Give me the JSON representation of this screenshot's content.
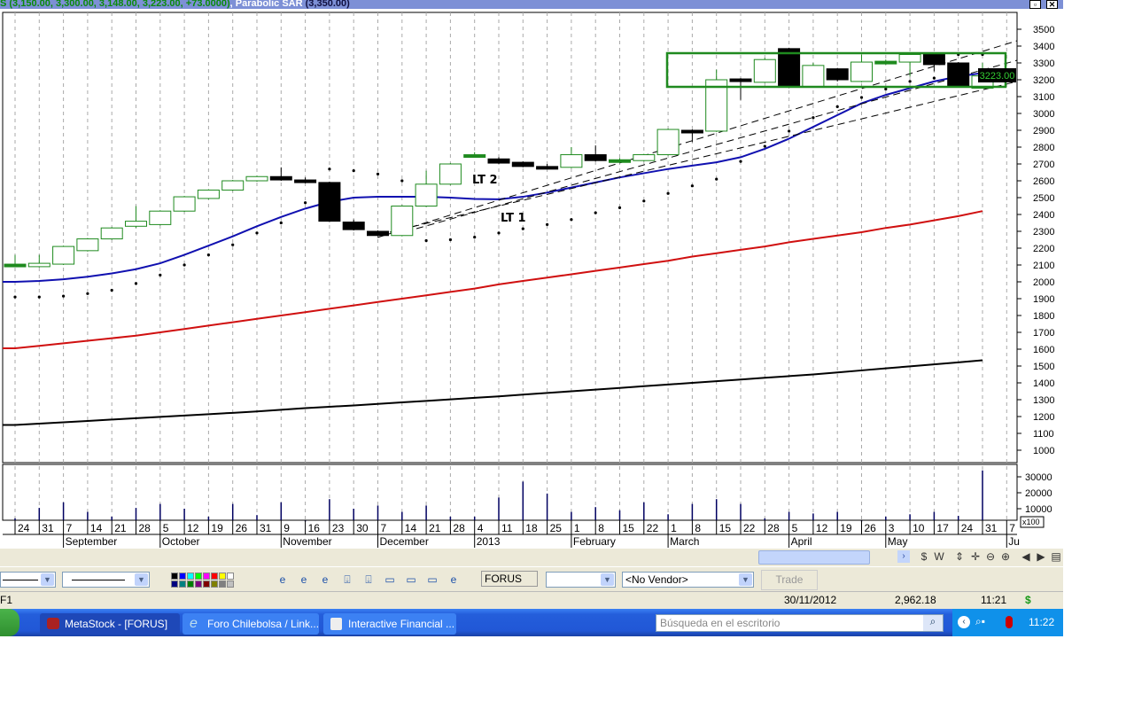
{
  "header": {
    "ohlc": "S (3,150.00, 3,300.00, 3,148.00, 3,223.00, +73.0000)",
    "sep": ", ",
    "indicator_name": "Parabolic SAR",
    "indicator_value": "(3,350.00)",
    "restore_label": "▫",
    "close_label": "✕"
  },
  "chart_data": {
    "type": "candlestick",
    "symbol": "FORUS",
    "y_range": [
      950,
      3600
    ],
    "y_ticks": [
      3500,
      3400,
      3300,
      3200,
      3100,
      3000,
      2900,
      2800,
      2700,
      2600,
      2500,
      2400,
      2300,
      2200,
      2100,
      2000,
      1900,
      1800,
      1700,
      1600,
      1500,
      1400,
      1300,
      1200,
      1100,
      1000
    ],
    "last_price_label": "3223.00",
    "x_days": [
      "24",
      "31",
      "7",
      "14",
      "21",
      "28",
      "5",
      "12",
      "19",
      "26",
      "31",
      "9",
      "16",
      "23",
      "30",
      "7",
      "14",
      "21",
      "28",
      "4",
      "11",
      "18",
      "25",
      "1",
      "8",
      "15",
      "22",
      "1",
      "8",
      "15",
      "22",
      "28",
      "5",
      "12",
      "19",
      "26",
      "3",
      "10",
      "17",
      "24",
      "31",
      "7"
    ],
    "x_months": [
      {
        "label": "September",
        "week": 2
      },
      {
        "label": "October",
        "week": 6
      },
      {
        "label": "November",
        "week": 11
      },
      {
        "label": "December",
        "week": 15
      },
      {
        "label": "2013",
        "week": 19
      },
      {
        "label": "February",
        "week": 23
      },
      {
        "label": "March",
        "week": 27
      },
      {
        "label": "April",
        "week": 32
      },
      {
        "label": "May",
        "week": 36
      },
      {
        "label": "Ju",
        "week": 41
      }
    ],
    "candles": [
      [
        2095,
        2160,
        2090,
        2105
      ],
      [
        2090,
        2160,
        2085,
        2110
      ],
      [
        2105,
        2215,
        2100,
        2210
      ],
      [
        2185,
        2260,
        2180,
        2255
      ],
      [
        2255,
        2325,
        2250,
        2320
      ],
      [
        2330,
        2450,
        2320,
        2360
      ],
      [
        2340,
        2425,
        2335,
        2420
      ],
      [
        2420,
        2510,
        2415,
        2505
      ],
      [
        2495,
        2550,
        2490,
        2545
      ],
      [
        2545,
        2605,
        2540,
        2600
      ],
      [
        2600,
        2630,
        2595,
        2625
      ],
      [
        2625,
        2680,
        2600,
        2605
      ],
      [
        2605,
        2620,
        2585,
        2590
      ],
      [
        2590,
        2595,
        2355,
        2360
      ],
      [
        2355,
        2370,
        2305,
        2310
      ],
      [
        2300,
        2305,
        2270,
        2275
      ],
      [
        2275,
        2455,
        2270,
        2450
      ],
      [
        2450,
        2660,
        2445,
        2580
      ],
      [
        2580,
        2705,
        2575,
        2700
      ],
      [
        2745,
        2770,
        2740,
        2755
      ],
      [
        2730,
        2740,
        2700,
        2705
      ],
      [
        2710,
        2715,
        2680,
        2685
      ],
      [
        2685,
        2700,
        2675,
        2680
      ],
      [
        2680,
        2800,
        2675,
        2755
      ],
      [
        2755,
        2810,
        2715,
        2720
      ],
      [
        2725,
        2735,
        2715,
        2725
      ],
      [
        2720,
        2760,
        2715,
        2755
      ],
      [
        2755,
        2910,
        2750,
        2905
      ],
      [
        2900,
        2905,
        2830,
        2885
      ],
      [
        2895,
        3260,
        2890,
        3200
      ],
      [
        3205,
        3210,
        3080,
        3190
      ],
      [
        3185,
        3330,
        3180,
        3320
      ],
      [
        3385,
        3390,
        3150,
        3165
      ],
      [
        3160,
        3300,
        3155,
        3285
      ],
      [
        3265,
        3270,
        3190,
        3200
      ],
      [
        3190,
        3350,
        3185,
        3305
      ],
      [
        3305,
        3320,
        3290,
        3310
      ],
      [
        3305,
        3355,
        3220,
        3350
      ],
      [
        3350,
        3355,
        3250,
        3290
      ],
      [
        3300,
        3305,
        3160,
        3160
      ],
      [
        3150,
        3300,
        3148,
        3223
      ]
    ],
    "candle_fields": [
      "open",
      "high",
      "low",
      "close"
    ],
    "parabolic_sar": [
      1910,
      1910,
      1915,
      1930,
      1950,
      1990,
      2040,
      2100,
      2160,
      2220,
      2290,
      2350,
      2470,
      2670,
      2660,
      2640,
      2600,
      2245,
      2250,
      2265,
      2290,
      2315,
      2340,
      2370,
      2410,
      2440,
      2480,
      2525,
      2570,
      2610,
      2715,
      2805,
      2895,
      2975,
      3040,
      3095,
      3145,
      3190,
      3210,
      3350,
      3350
    ],
    "ma_short": [
      2000,
      2005,
      2015,
      2030,
      2050,
      2075,
      2110,
      2160,
      2215,
      2270,
      2330,
      2385,
      2435,
      2475,
      2500,
      2505,
      2505,
      2505,
      2500,
      2492,
      2490,
      2505,
      2530,
      2560,
      2590,
      2620,
      2645,
      2670,
      2690,
      2710,
      2740,
      2790,
      2850,
      2920,
      2990,
      3060,
      3110,
      3150,
      3190,
      3220,
      3240
    ],
    "ma_mid": [
      1605,
      1620,
      1635,
      1650,
      1665,
      1680,
      1700,
      1720,
      1740,
      1760,
      1780,
      1800,
      1820,
      1840,
      1860,
      1880,
      1900,
      1920,
      1940,
      1960,
      1985,
      2005,
      2025,
      2045,
      2065,
      2085,
      2105,
      2125,
      2150,
      2170,
      2190,
      2210,
      2235,
      2255,
      2275,
      2295,
      2320,
      2340,
      2365,
      2390,
      2420
    ],
    "ma_long": [
      1150,
      1158,
      1166,
      1174,
      1182,
      1190,
      1198,
      1206,
      1214,
      1222,
      1230,
      1240,
      1250,
      1258,
      1266,
      1275,
      1284,
      1293,
      1302,
      1311,
      1320,
      1330,
      1340,
      1350,
      1360,
      1370,
      1380,
      1390,
      1400,
      1410,
      1420,
      1430,
      1440,
      1450,
      1462,
      1474,
      1486,
      1498,
      1510,
      1522,
      1534
    ],
    "annotations": [
      "LT 2",
      "LT 1"
    ],
    "colors": {
      "up": "#1f8a1f",
      "down": "#000000",
      "ma_short": "#1010b0",
      "ma_mid": "#d01010",
      "ma_long": "#000000",
      "box": "#1f8a1f",
      "volume": "#000060"
    },
    "volume": {
      "y_ticks": [
        30000,
        20000,
        10000
      ],
      "unit_label": "x100",
      "values": [
        4000,
        10500,
        14000,
        8000,
        5000,
        10500,
        13000,
        10000,
        5000,
        13000,
        6000,
        14000,
        2000,
        16000,
        10000,
        12000,
        8000,
        12000,
        5000,
        5000,
        17000,
        27000,
        19500,
        8000,
        11000,
        9000,
        14000,
        6500,
        13000,
        16000,
        13000,
        4000,
        8000,
        7000,
        8000,
        2000,
        5000,
        6500,
        8000,
        5500,
        34000
      ]
    }
  },
  "toolbar": {
    "symbol": "FORUS",
    "empty_select": "",
    "vendor": "<No Vendor>",
    "trade": "Trade",
    "palette_top": [
      "#000000",
      "#0000ff",
      "#00ffff",
      "#00ff00",
      "#ff00ff",
      "#ff0000",
      "#ffff00",
      "#ffffff"
    ],
    "palette_bottom": [
      "#000080",
      "#008080",
      "#008000",
      "#800080",
      "#800000",
      "#808000",
      "#808080",
      "#c0c0c0"
    ],
    "nav_icons": [
      "$",
      "W",
      "⇕",
      "✛",
      "⊖",
      "⊕",
      "◀",
      "▶",
      "▤"
    ]
  },
  "status": {
    "help": "F1",
    "date": "30/11/2012",
    "value": "2,962.18",
    "time": "11:21",
    "currency": "$"
  },
  "taskbar": {
    "items": [
      "MetaStock - [FORUS]",
      "Foro Chilebolsa / Link...",
      "Interactive Financial ..."
    ],
    "search_placeholder": "Búsqueda en el escritorio",
    "clock": "11:22"
  }
}
